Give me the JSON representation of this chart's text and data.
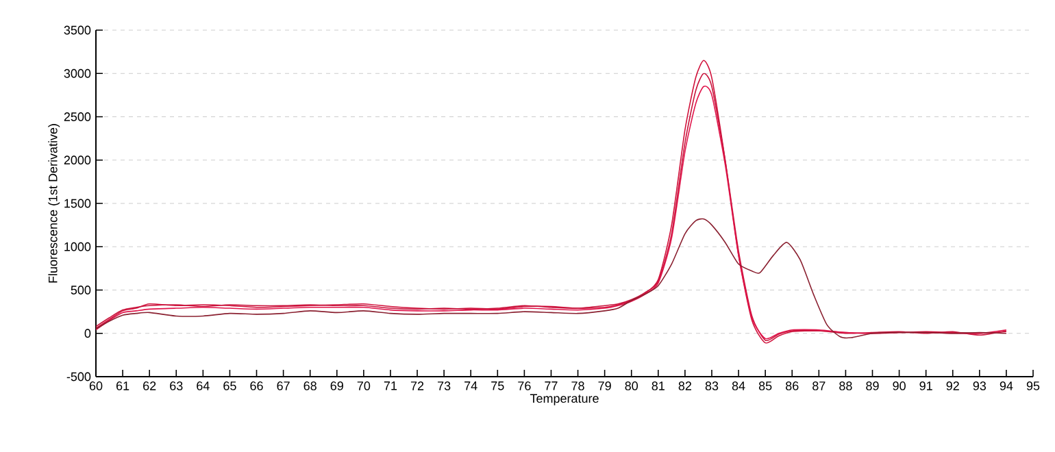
{
  "chart_data": {
    "type": "line",
    "xlabel": "Temperature",
    "ylabel": "Fluorescence (1st Derivative)",
    "xlim": [
      60,
      95
    ],
    "xticks": [
      60,
      61,
      62,
      63,
      64,
      65,
      66,
      67,
      68,
      69,
      70,
      71,
      72,
      73,
      74,
      75,
      76,
      77,
      78,
      79,
      80,
      81,
      82,
      83,
      84,
      85,
      86,
      87,
      88,
      89,
      90,
      91,
      92,
      93,
      94,
      95
    ],
    "ylim": [
      -500,
      3500
    ],
    "yticks": [
      -500,
      0,
      500,
      1000,
      1500,
      2000,
      2500,
      3000,
      3500
    ],
    "grid": "y",
    "marker": "none",
    "line_style": "solid",
    "series": [
      {
        "color": "#d0103a",
        "x": [
          60,
          60.5,
          61,
          61.5,
          62,
          63,
          64,
          65,
          66,
          67,
          68,
          69,
          70,
          71,
          72,
          73,
          74,
          75,
          76,
          77,
          78,
          79,
          79.5,
          80,
          80.5,
          81,
          81.5,
          82,
          82.4,
          82.7,
          83,
          83.5,
          84,
          84.5,
          85,
          85.5,
          86,
          87,
          88,
          89,
          90,
          91,
          92,
          93,
          94
        ],
        "values": [
          60,
          160,
          260,
          290,
          340,
          320,
          330,
          320,
          300,
          310,
          320,
          330,
          340,
          310,
          290,
          280,
          290,
          280,
          310,
          310,
          290,
          300,
          330,
          380,
          460,
          620,
          1250,
          2350,
          2950,
          3150,
          2950,
          2000,
          900,
          150,
          -110,
          -30,
          20,
          30,
          10,
          0,
          10,
          20,
          10,
          0,
          20
        ]
      },
      {
        "color": "#c8143c",
        "x": [
          60,
          60.5,
          61,
          61.5,
          62,
          63,
          64,
          65,
          66,
          67,
          68,
          69,
          70,
          71,
          72,
          73,
          74,
          75,
          76,
          77,
          78,
          79,
          79.5,
          80,
          80.5,
          81,
          81.5,
          82,
          82.4,
          82.7,
          83,
          83.5,
          84,
          84.5,
          85,
          85.5,
          86,
          87,
          88,
          89,
          90,
          91,
          92,
          93,
          94
        ],
        "values": [
          80,
          180,
          270,
          300,
          320,
          330,
          310,
          330,
          320,
          320,
          330,
          320,
          320,
          290,
          280,
          290,
          280,
          290,
          320,
          300,
          290,
          320,
          340,
          390,
          470,
          600,
          1150,
          2200,
          2800,
          3000,
          2850,
          2000,
          950,
          200,
          -80,
          -10,
          30,
          30,
          0,
          10,
          20,
          0,
          20,
          -20,
          30
        ]
      },
      {
        "color": "#e0144a",
        "x": [
          60,
          60.5,
          61,
          61.5,
          62,
          63,
          64,
          65,
          66,
          67,
          68,
          69,
          70,
          71,
          72,
          73,
          74,
          75,
          76,
          77,
          78,
          79,
          79.5,
          80,
          80.5,
          81,
          81.5,
          82,
          82.4,
          82.7,
          83,
          83.5,
          84,
          84.5,
          85,
          85.5,
          86,
          87,
          88,
          89,
          90,
          91,
          92,
          93,
          94
        ],
        "values": [
          40,
          150,
          240,
          260,
          280,
          290,
          300,
          290,
          280,
          290,
          300,
          300,
          300,
          270,
          260,
          260,
          270,
          270,
          290,
          280,
          270,
          290,
          320,
          370,
          450,
          580,
          1100,
          2100,
          2650,
          2850,
          2750,
          1950,
          900,
          180,
          -60,
          0,
          40,
          40,
          10,
          0,
          10,
          10,
          0,
          0,
          40
        ]
      },
      {
        "color": "#8a2030",
        "x": [
          60,
          60.5,
          61,
          61.5,
          62,
          63,
          64,
          65,
          66,
          67,
          68,
          69,
          70,
          71,
          72,
          73,
          74,
          75,
          76,
          77,
          78,
          79,
          79.5,
          80,
          80.5,
          81,
          81.5,
          82,
          82.4,
          82.7,
          83,
          83.5,
          84,
          84.5,
          84.8,
          85.3,
          85.8,
          86.3,
          86.8,
          87.3,
          87.8,
          88.2,
          89,
          90,
          91,
          92,
          93,
          94
        ],
        "values": [
          50,
          140,
          210,
          230,
          240,
          200,
          200,
          230,
          220,
          230,
          260,
          240,
          260,
          230,
          220,
          230,
          230,
          230,
          250,
          240,
          230,
          260,
          290,
          380,
          450,
          550,
          800,
          1150,
          1300,
          1320,
          1250,
          1050,
          800,
          720,
          700,
          900,
          1050,
          850,
          450,
          100,
          -40,
          -50,
          0,
          10,
          10,
          0,
          10,
          0
        ]
      }
    ]
  }
}
